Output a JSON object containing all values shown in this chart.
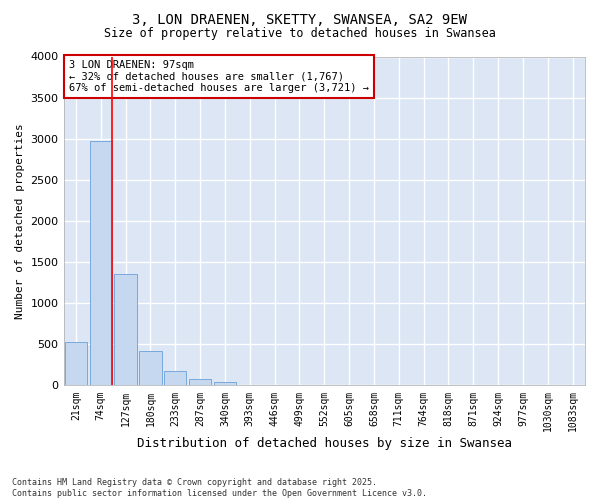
{
  "title_line1": "3, LON DRAENEN, SKETTY, SWANSEA, SA2 9EW",
  "title_line2": "Size of property relative to detached houses in Swansea",
  "xlabel": "Distribution of detached houses by size in Swansea",
  "ylabel": "Number of detached properties",
  "categories": [
    "21sqm",
    "74sqm",
    "127sqm",
    "180sqm",
    "233sqm",
    "287sqm",
    "340sqm",
    "393sqm",
    "446sqm",
    "499sqm",
    "552sqm",
    "605sqm",
    "658sqm",
    "711sqm",
    "764sqm",
    "818sqm",
    "871sqm",
    "924sqm",
    "977sqm",
    "1030sqm",
    "1083sqm"
  ],
  "values": [
    530,
    2970,
    1360,
    420,
    170,
    80,
    40,
    10,
    0,
    0,
    0,
    0,
    0,
    0,
    0,
    0,
    0,
    0,
    0,
    0,
    0
  ],
  "bar_color": "#c5d8f0",
  "bar_edge_color": "#6a9fd8",
  "background_color": "#dce6f5",
  "grid_color": "#ffffff",
  "red_line_x": 1.45,
  "annotation_text": "3 LON DRAENEN: 97sqm\n← 32% of detached houses are smaller (1,767)\n67% of semi-detached houses are larger (3,721) →",
  "annotation_box_color": "#ffffff",
  "annotation_box_edge_color": "#cc0000",
  "ylim": [
    0,
    4000
  ],
  "yticks": [
    0,
    500,
    1000,
    1500,
    2000,
    2500,
    3000,
    3500,
    4000
  ],
  "footer_line1": "Contains HM Land Registry data © Crown copyright and database right 2025.",
  "footer_line2": "Contains public sector information licensed under the Open Government Licence v3.0."
}
